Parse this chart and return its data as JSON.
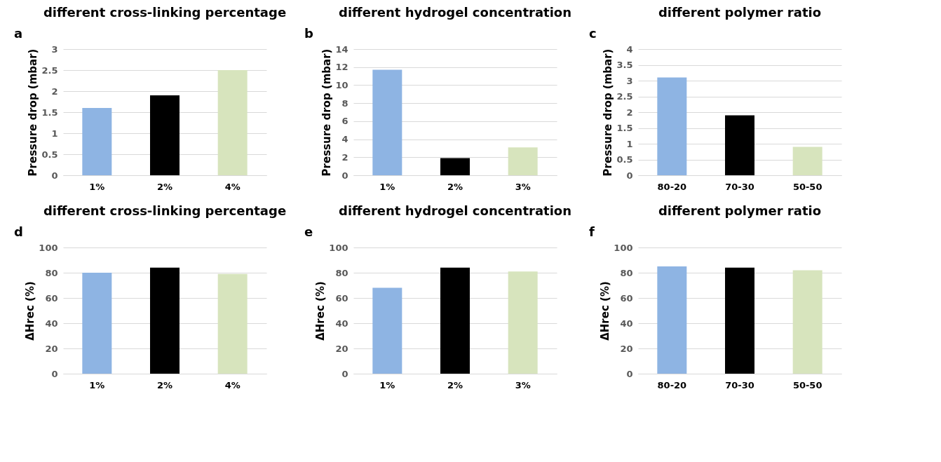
{
  "chart_data": [
    {
      "type": "bar",
      "title": "different cross-linking percentage",
      "annotations": [
        "a"
      ],
      "ylabel": "Pressure drop (mbar)",
      "categories": [
        "1%",
        "2%",
        "4%"
      ],
      "values": [
        1.6,
        1.9,
        2.5
      ],
      "colors": [
        "#8eb4e3",
        "#000000",
        "#d7e4bd"
      ],
      "ylim": [
        0,
        3
      ],
      "yticks": [
        0,
        0.5,
        1,
        1.5,
        2,
        2.5,
        3
      ],
      "grid": "y"
    },
    {
      "type": "bar",
      "title": "different hydrogel concentration",
      "annotations": [
        "b"
      ],
      "ylabel": "Pressure drop (mbar)",
      "categories": [
        "1%",
        "2%",
        "3%"
      ],
      "values": [
        11.7,
        1.9,
        3.1
      ],
      "colors": [
        "#8eb4e3",
        "#000000",
        "#d7e4bd"
      ],
      "ylim": [
        0,
        14
      ],
      "yticks": [
        0,
        2,
        4,
        6,
        8,
        10,
        12,
        14
      ],
      "grid": "y"
    },
    {
      "type": "bar",
      "title": "different polymer ratio",
      "annotations": [
        "c"
      ],
      "ylabel": "Pressure drop (mbar)",
      "categories": [
        "80-20",
        "70-30",
        "50-50"
      ],
      "values": [
        3.1,
        1.9,
        0.9
      ],
      "colors": [
        "#8eb4e3",
        "#000000",
        "#d7e4bd"
      ],
      "ylim": [
        0,
        4
      ],
      "yticks": [
        0,
        0.5,
        1,
        1.5,
        2,
        2.5,
        3,
        3.5,
        4
      ],
      "grid": "y"
    },
    {
      "type": "bar",
      "title": "different cross-linking percentage",
      "annotations": [
        "d"
      ],
      "ylabel": "ΔHrec (%)",
      "categories": [
        "1%",
        "2%",
        "4%"
      ],
      "values": [
        80,
        84,
        79
      ],
      "colors": [
        "#8eb4e3",
        "#000000",
        "#d7e4bd"
      ],
      "ylim": [
        0,
        100
      ],
      "yticks": [
        0,
        20,
        40,
        60,
        80,
        100
      ],
      "grid": "y"
    },
    {
      "type": "bar",
      "title": "different hydrogel concentration",
      "annotations": [
        "e"
      ],
      "ylabel": "ΔHrec (%)",
      "categories": [
        "1%",
        "2%",
        "3%"
      ],
      "values": [
        68,
        84,
        81
      ],
      "colors": [
        "#8eb4e3",
        "#000000",
        "#d7e4bd"
      ],
      "ylim": [
        0,
        100
      ],
      "yticks": [
        0,
        20,
        40,
        60,
        80,
        100
      ],
      "grid": "y"
    },
    {
      "type": "bar",
      "title": "different polymer ratio",
      "annotations": [
        "f"
      ],
      "ylabel": "ΔHrec (%)",
      "categories": [
        "80-20",
        "70-30",
        "50-50"
      ],
      "values": [
        85,
        84,
        82
      ],
      "colors": [
        "#8eb4e3",
        "#000000",
        "#d7e4bd"
      ],
      "ylim": [
        0,
        100
      ],
      "yticks": [
        0,
        20,
        40,
        60,
        80,
        100
      ],
      "grid": "y"
    }
  ]
}
